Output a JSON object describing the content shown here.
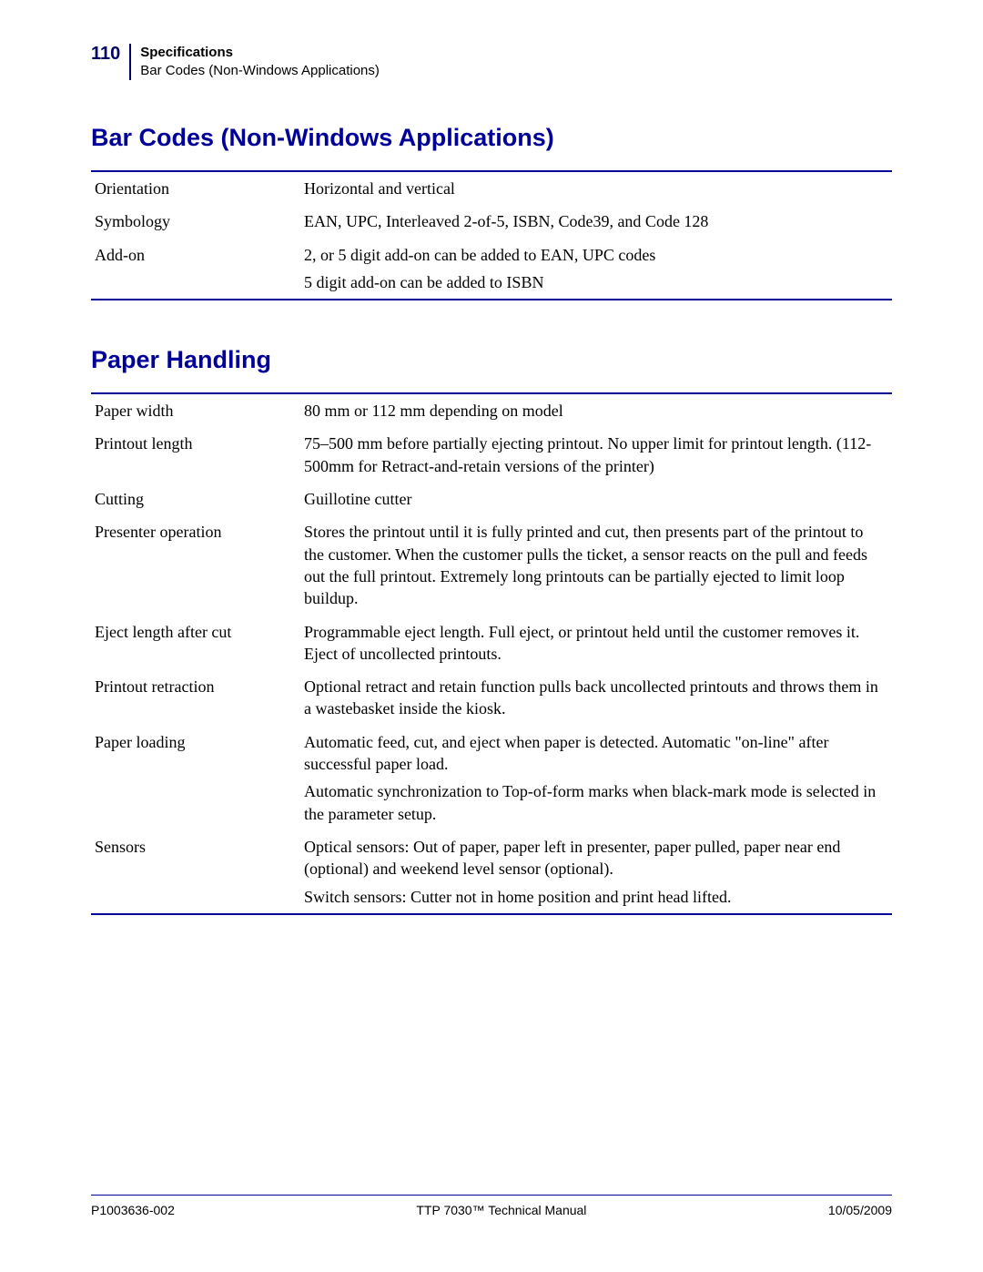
{
  "header": {
    "page_number": "110",
    "section": "Specifications",
    "subsection": "Bar Codes (Non-Windows Applications)"
  },
  "sections": {
    "barcodes": {
      "title": "Bar Codes (Non-Windows Applications)",
      "rows": [
        {
          "label": "Orientation",
          "values": [
            "Horizontal and vertical"
          ]
        },
        {
          "label": "Symbology",
          "values": [
            "EAN, UPC, Interleaved 2-of-5, ISBN, Code39, and Code 128"
          ]
        },
        {
          "label": "Add-on",
          "values": [
            "2, or 5 digit add-on can be added to EAN, UPC codes",
            "5 digit add-on can be added to ISBN"
          ]
        }
      ]
    },
    "paper": {
      "title": "Paper Handling",
      "rows": [
        {
          "label": "Paper width",
          "values": [
            "80 mm or 112 mm depending on model"
          ]
        },
        {
          "label": "Printout length",
          "values": [
            "75–500 mm before partially ejecting printout. No upper limit for printout length. (112-500mm for Retract-and-retain versions of the printer)"
          ]
        },
        {
          "label": "Cutting",
          "values": [
            "Guillotine cutter"
          ]
        },
        {
          "label": "Presenter operation",
          "values": [
            "Stores the printout until it is fully printed and cut, then presents part of the printout to the customer. When the customer pulls the ticket, a sensor reacts on the pull and feeds out the full printout. Extremely long printouts can be partially ejected to limit loop buildup."
          ]
        },
        {
          "label": "Eject length after cut",
          "values": [
            "Programmable eject length. Full eject, or printout held until the customer removes it. Eject of uncollected printouts."
          ]
        },
        {
          "label": "Printout retraction",
          "values": [
            "Optional retract and retain function pulls back uncollected printouts and throws them in a wastebasket inside the kiosk."
          ]
        },
        {
          "label": "Paper loading",
          "values": [
            "Automatic feed, cut, and eject when paper is detected. Automatic \"on-line\" after successful paper load.",
            "Automatic synchronization to Top-of-form marks when black-mark mode is selected in the parameter setup."
          ]
        },
        {
          "label": "Sensors",
          "values": [
            "Optical sensors: Out of paper, paper left in presenter, paper pulled, paper near end (optional) and weekend level sensor (optional).",
            "Switch sensors: Cutter not in home position and print head lifted."
          ]
        }
      ]
    }
  },
  "footer": {
    "left": "P1003636-002",
    "center": "TTP 7030™ Technical Manual",
    "right": "10/05/2009"
  },
  "colors": {
    "heading": "#000099",
    "rule": "#000099",
    "text": "#000000",
    "background": "#ffffff"
  }
}
